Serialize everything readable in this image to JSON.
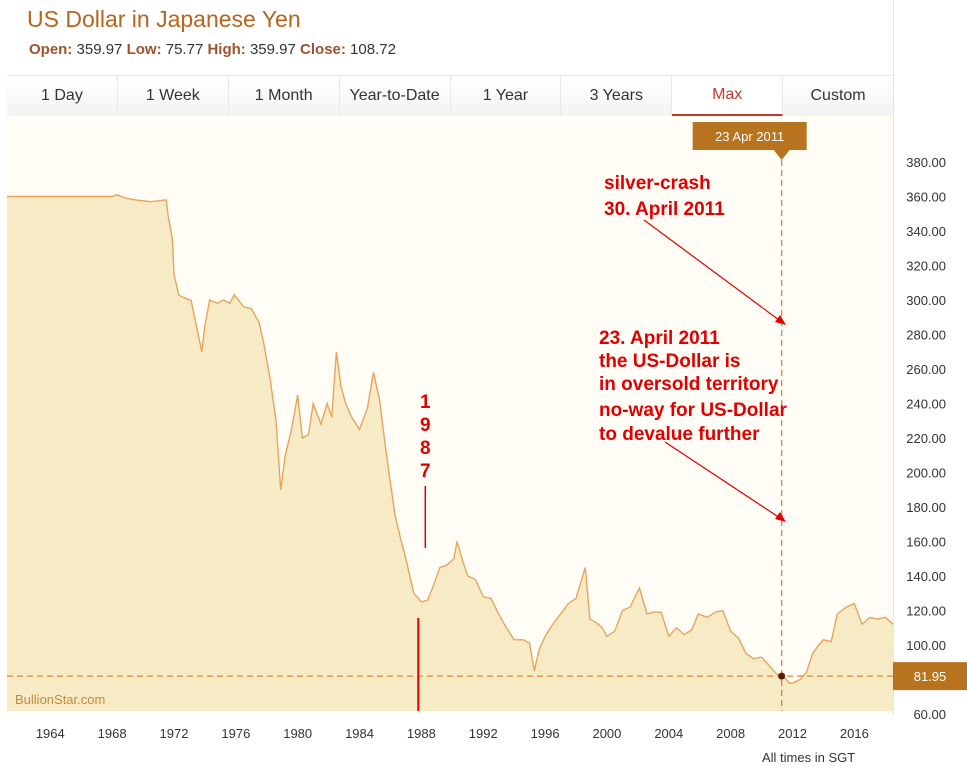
{
  "header": {
    "title": "US Dollar in Japanese Yen",
    "open_label": "Open:",
    "open": "359.97",
    "low_label": "Low:",
    "low": "75.77",
    "high_label": "High:",
    "high": "359.97",
    "close_label": "Close:",
    "close": "108.72"
  },
  "tabs": [
    {
      "label": "1 Day"
    },
    {
      "label": "1 Week"
    },
    {
      "label": "1 Month"
    },
    {
      "label": "Year-to-Date"
    },
    {
      "label": "1 Year"
    },
    {
      "label": "3 Years"
    },
    {
      "label": "Max",
      "active": true
    },
    {
      "label": "Custom"
    }
  ],
  "footer": {
    "timezone_note": "All times in SGT"
  },
  "colors": {
    "accent": "#b5651d",
    "area_fill": "#f7ebc6",
    "line": "#e8a45c",
    "annotation": "#e00000",
    "tooltip_bg": "#b8731e"
  },
  "chart_data": {
    "type": "area",
    "title": "US Dollar in Japanese Yen",
    "watermark": "BullionStar.com",
    "x_ticks": [
      "1964",
      "1968",
      "1972",
      "1976",
      "1980",
      "1984",
      "1988",
      "1992",
      "1996",
      "2000",
      "2004",
      "2008",
      "2012",
      "2016"
    ],
    "xlim": [
      1961.2,
      2018.5
    ],
    "y_ticks": [
      "60.00",
      "100.00",
      "120.00",
      "140.00",
      "160.00",
      "180.00",
      "200.00",
      "220.00",
      "240.00",
      "260.00",
      "280.00",
      "300.00",
      "320.00",
      "340.00",
      "360.00",
      "380.00"
    ],
    "ylim": [
      60,
      390
    ],
    "x": [
      1961.2,
      1968.0,
      1968.3,
      1968.6,
      1968.9,
      1969.5,
      1970.5,
      1971.5,
      1971.6,
      1971.9,
      1972.0,
      1972.3,
      1972.5,
      1973.0,
      1973.1,
      1973.8,
      1974.0,
      1974.3,
      1974.8,
      1975.2,
      1975.6,
      1975.9,
      1976.5,
      1977.0,
      1977.5,
      1977.8,
      1978.2,
      1978.6,
      1978.9,
      1979.2,
      1979.6,
      1980.0,
      1980.3,
      1980.7,
      1981.0,
      1981.5,
      1981.9,
      1982.2,
      1982.5,
      1982.8,
      1983.1,
      1983.5,
      1984.0,
      1984.5,
      1984.9,
      1985.3,
      1985.6,
      1985.9,
      1986.3,
      1986.7,
      1987.0,
      1987.5,
      1988.0,
      1988.4,
      1988.8,
      1989.2,
      1989.6,
      1990.1,
      1990.3,
      1990.7,
      1991.0,
      1991.5,
      1992.0,
      1992.5,
      1993.0,
      1993.5,
      1994.0,
      1994.6,
      1995.0,
      1995.3,
      1995.6,
      1996.0,
      1996.5,
      1997.0,
      1997.5,
      1998.0,
      1998.6,
      1998.9,
      1999.3,
      1999.7,
      2000.0,
      2000.5,
      2001.0,
      2001.5,
      2002.1,
      2002.6,
      2003.0,
      2003.5,
      2004.0,
      2004.5,
      2005.0,
      2005.5,
      2005.9,
      2006.5,
      2007.0,
      2007.5,
      2008.0,
      2008.5,
      2009.0,
      2009.5,
      2010.0,
      2010.5,
      2011.0,
      2011.3,
      2011.8,
      2012.0,
      2012.5,
      2012.9,
      2013.3,
      2013.7,
      2014.0,
      2014.5,
      2014.9,
      2015.5,
      2016.0,
      2016.5,
      2017.0,
      2017.5,
      2018.0,
      2018.5
    ],
    "values": [
      360,
      360,
      361,
      360,
      359,
      358,
      357,
      358,
      350,
      335,
      315,
      303,
      302,
      300,
      300,
      270,
      285,
      300,
      298,
      300,
      298,
      303,
      296,
      295,
      287,
      275,
      255,
      230,
      190,
      210,
      225,
      245,
      220,
      222,
      240,
      228,
      240,
      232,
      270,
      250,
      240,
      232,
      225,
      237,
      258,
      242,
      220,
      200,
      175,
      160,
      150,
      130,
      125,
      126,
      135,
      145,
      146,
      150,
      160,
      148,
      140,
      138,
      128,
      127,
      118,
      110,
      103,
      103,
      101,
      85,
      97,
      105,
      112,
      118,
      124,
      127,
      145,
      115,
      113,
      110,
      105,
      108,
      120,
      122,
      133,
      118,
      119,
      119,
      105,
      110,
      106,
      109,
      118,
      116,
      119,
      120,
      108,
      104,
      95,
      92,
      93,
      88,
      83,
      83,
      78,
      78,
      80,
      84,
      95,
      100,
      103,
      102,
      118,
      122,
      124,
      112,
      116,
      115,
      116,
      112
    ],
    "annotations": [
      {
        "date": "23 Apr 2011",
        "value": 81.95,
        "marker_year": 2011.3
      },
      {
        "text": [
          "silver-crash",
          "30. April 2011"
        ]
      },
      {
        "text": [
          "23. April 2011",
          "the US-Dollar is",
          "in oversold territory",
          "no-way for US-Dollar",
          "to devalue further"
        ]
      },
      {
        "text": [
          "1",
          "9",
          "8",
          "7"
        ],
        "marker_year": 1987.8
      }
    ]
  }
}
